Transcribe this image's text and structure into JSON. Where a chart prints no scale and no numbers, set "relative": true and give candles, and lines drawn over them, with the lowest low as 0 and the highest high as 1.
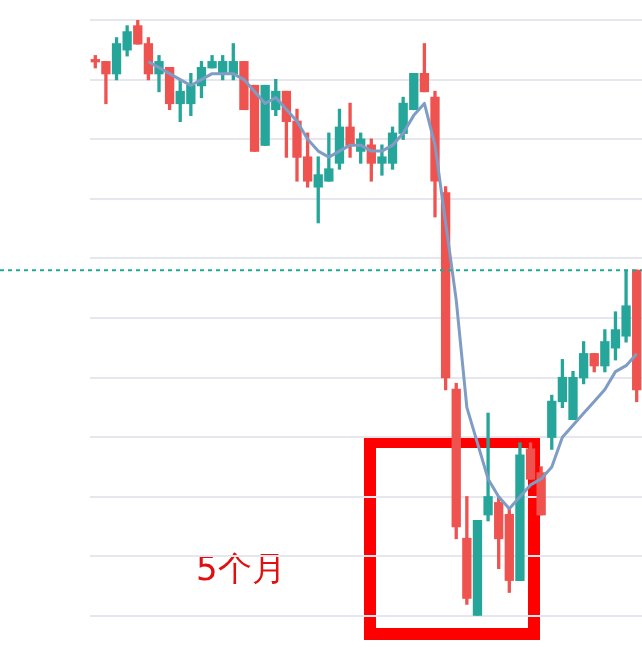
{
  "chart_data": {
    "type": "candlestick",
    "relative": true,
    "grid": "y",
    "legend": false,
    "tick_labels": false,
    "categories": [
      null,
      null,
      null,
      null,
      null,
      null,
      null,
      null,
      null,
      null,
      null,
      null,
      null,
      null,
      null,
      null,
      null,
      null,
      null,
      null,
      null,
      null,
      null,
      null,
      null,
      null,
      null,
      null,
      null,
      null,
      null,
      null,
      null,
      null,
      null,
      null,
      null,
      null,
      null,
      null,
      null,
      null,
      null,
      null,
      null,
      null,
      null,
      null,
      null,
      null,
      null,
      null
    ],
    "series": [
      {
        "type": "candlestick",
        "colors": [
          "#ef5350",
          "#ef5350",
          "#26a69a",
          "#26a69a",
          "#ef5350",
          "#ef5350",
          "#26a69a",
          "#ef5350",
          "#26a69a",
          "#26a69a",
          "#26a69a",
          "#26a69a",
          "#26a69a",
          "#26a69a",
          "#ef5350",
          "#ef5350",
          "#26a69a",
          "#26a69a",
          "#ef5350",
          "#ef5350",
          "#ef5350",
          "#26a69a",
          "#26a69a",
          "#26a69a",
          "#ef5350",
          "#26a69a",
          "#ef5350",
          "#26a69a",
          "#26a69a",
          "#26a69a",
          "#26a69a",
          "#ef5350",
          "#ef5350",
          "#ef5350",
          "#ef5350",
          "#ef5350",
          "#26a69a",
          "#26a69a",
          "#ef5350",
          "#ef5350",
          "#26a69a",
          "#ef5350",
          "#ef5350",
          "#26a69a",
          "#26a69a",
          "#26a69a",
          "#26a69a",
          "#ef5350",
          "#26a69a",
          "#26a69a",
          "#26a69a",
          "#ef5350"
        ],
        "ohlc": [
          [
            0.93,
            0.94,
            0.92,
            0.93
          ],
          [
            0.93,
            0.93,
            0.86,
            0.91
          ],
          [
            0.91,
            0.97,
            0.9,
            0.96
          ],
          [
            0.95,
            0.99,
            0.94,
            0.98
          ],
          [
            0.99,
            1.0,
            0.96,
            0.96
          ],
          [
            0.96,
            0.97,
            0.9,
            0.91
          ],
          [
            0.91,
            0.94,
            0.88,
            0.93
          ],
          [
            0.92,
            0.92,
            0.85,
            0.86
          ],
          [
            0.86,
            0.9,
            0.83,
            0.88
          ],
          [
            0.86,
            0.91,
            0.84,
            0.89
          ],
          [
            0.89,
            0.93,
            0.87,
            0.92
          ],
          [
            0.92,
            0.94,
            0.92,
            0.93
          ],
          [
            0.91,
            0.94,
            0.9,
            0.93
          ],
          [
            0.91,
            0.96,
            0.9,
            0.93
          ],
          [
            0.93,
            0.93,
            0.85,
            0.85
          ],
          [
            0.89,
            0.89,
            0.78,
            0.78
          ],
          [
            0.79,
            0.89,
            0.79,
            0.89
          ],
          [
            0.85,
            0.9,
            0.84,
            0.88
          ],
          [
            0.88,
            0.88,
            0.77,
            0.83
          ],
          [
            0.83,
            0.85,
            0.73,
            0.77
          ],
          [
            0.77,
            0.81,
            0.72,
            0.73
          ],
          [
            0.72,
            0.77,
            0.66,
            0.74
          ],
          [
            0.73,
            0.81,
            0.73,
            0.75
          ],
          [
            0.76,
            0.85,
            0.75,
            0.82
          ],
          [
            0.82,
            0.86,
            0.77,
            0.79
          ],
          [
            0.78,
            0.81,
            0.76,
            0.8
          ],
          [
            0.79,
            0.8,
            0.73,
            0.76
          ],
          [
            0.76,
            0.79,
            0.74,
            0.77
          ],
          [
            0.76,
            0.82,
            0.75,
            0.81
          ],
          [
            0.81,
            0.87,
            0.8,
            0.86
          ],
          [
            0.85,
            0.91,
            0.85,
            0.91
          ],
          [
            0.91,
            0.96,
            0.88,
            0.88
          ],
          [
            0.87,
            0.88,
            0.67,
            0.73
          ],
          [
            0.71,
            0.72,
            0.38,
            0.4
          ],
          [
            0.38,
            0.39,
            0.13,
            0.15
          ],
          [
            0.13,
            0.2,
            0.02,
            0.03
          ],
          [
            0.0,
            0.16,
            0.0,
            0.16
          ],
          [
            0.17,
            0.34,
            0.16,
            0.2
          ],
          [
            0.19,
            0.2,
            0.08,
            0.13
          ],
          [
            0.17,
            0.18,
            0.04,
            0.06
          ],
          [
            0.06,
            0.29,
            0.06,
            0.27
          ],
          [
            0.28,
            0.29,
            0.23,
            0.23
          ],
          [
            0.24,
            0.25,
            0.17,
            0.17
          ],
          [
            0.3,
            0.37,
            0.28,
            0.36
          ],
          [
            0.36,
            0.43,
            0.35,
            0.4
          ],
          [
            0.33,
            0.41,
            0.33,
            0.4
          ],
          [
            0.4,
            0.46,
            0.39,
            0.44
          ],
          [
            0.44,
            0.44,
            0.41,
            0.42
          ],
          [
            0.42,
            0.48,
            0.41,
            0.46
          ],
          [
            0.45,
            0.51,
            0.43,
            0.48
          ],
          [
            0.47,
            0.58,
            0.46,
            0.52
          ],
          [
            0.58,
            0.58,
            0.36,
            0.38
          ]
        ]
      },
      {
        "type": "line",
        "color": "#7f9cc4",
        "values": [
          null,
          null,
          null,
          null,
          null,
          0.93,
          0.92,
          0.91,
          0.9,
          0.89,
          0.9,
          0.91,
          0.91,
          0.91,
          0.9,
          0.88,
          0.86,
          0.87,
          0.85,
          0.83,
          0.8,
          0.78,
          0.77,
          0.78,
          0.79,
          0.79,
          0.78,
          0.78,
          0.79,
          0.81,
          0.84,
          0.86,
          0.79,
          0.66,
          0.53,
          0.35,
          0.29,
          0.23,
          0.2,
          0.18,
          0.2,
          0.22,
          0.23,
          0.25,
          0.3,
          0.32,
          0.34,
          0.36,
          0.38,
          0.41,
          0.42,
          0.44
        ]
      }
    ],
    "ref_lines": [
      {
        "axis": "y",
        "value": 0.58,
        "color": "#26a69a",
        "line_style": "dotted"
      }
    ],
    "annotations": [
      "5个月"
    ]
  }
}
